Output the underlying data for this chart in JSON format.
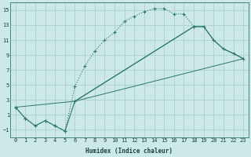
{
  "xlabel": "Humidex (Indice chaleur)",
  "background_color": "#cce8e8",
  "grid_color": "#aacfcf",
  "line_color": "#2a7a6a",
  "xlim": [
    -0.5,
    23.5
  ],
  "ylim": [
    -2,
    16
  ],
  "xticks": [
    0,
    1,
    2,
    3,
    4,
    5,
    6,
    7,
    8,
    9,
    10,
    11,
    12,
    13,
    14,
    15,
    16,
    17,
    18,
    19,
    20,
    21,
    22,
    23
  ],
  "yticks": [
    -1,
    1,
    3,
    5,
    7,
    9,
    11,
    13,
    15
  ],
  "series1_x": [
    0,
    1,
    2,
    3,
    4,
    5,
    6,
    7,
    8,
    9,
    10,
    11,
    12,
    13,
    14,
    15,
    16,
    17,
    18
  ],
  "series1_y": [
    2,
    0.5,
    -0.5,
    0.2,
    -0.5,
    -1.2,
    4.8,
    7.5,
    9.5,
    11.0,
    12.0,
    13.5,
    14.2,
    14.8,
    15.2,
    15.2,
    14.5,
    14.5,
    12.8
  ],
  "series2_x": [
    0,
    1,
    2,
    3,
    4,
    5,
    6,
    18,
    19,
    20,
    21,
    22,
    23
  ],
  "series2_y": [
    2,
    0.5,
    -0.5,
    0.2,
    -0.5,
    -1.2,
    2.8,
    12.8,
    12.8,
    11.0,
    9.8,
    9.2,
    8.5
  ],
  "series3_x": [
    0,
    6,
    23
  ],
  "series3_y": [
    2,
    2.8,
    8.5
  ],
  "series4_x": [
    6,
    18,
    19,
    20,
    21,
    22,
    23
  ],
  "series4_y": [
    2.8,
    12.8,
    12.8,
    11.0,
    9.8,
    9.2,
    8.5
  ]
}
